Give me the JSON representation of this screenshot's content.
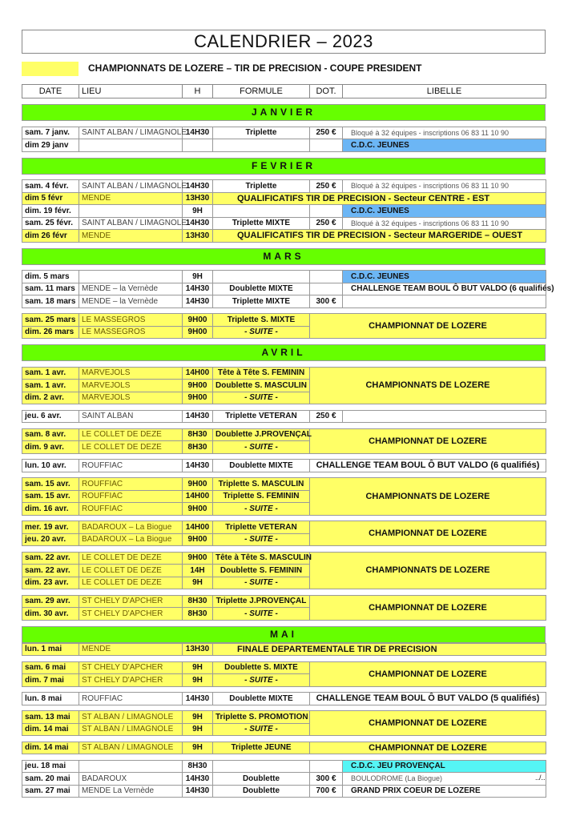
{
  "title": "CALENDRIER   –  2023",
  "legend": {
    "color": "#ffff66",
    "label": "CHAMPIONNATS DE LOZERE – TIR DE PRECISION - COUPE PRESIDENT"
  },
  "headers": [
    "DATE",
    "LIEU",
    "H",
    "FORMULE",
    "DOT.",
    "LIBELLE"
  ],
  "colors": {
    "month": "#66ff00",
    "highlight": "#ffff66",
    "cdc": "#6cb6f5",
    "cdc_provencal": "#55f5f5"
  },
  "months": [
    {
      "name": "JANVIER",
      "blocks": [
        {
          "rows": [
            {
              "date": "sam. 7 janv.",
              "lieu": "SAINT ALBAN / LIMAGNOLE",
              "h": "14H30",
              "formule": "Triplette",
              "dot": "250 €",
              "libelle": "Bloqué à 32 équipes - inscriptions 06 83 11 10 90",
              "style": "plain"
            },
            {
              "date": "dim 29 janv",
              "lieu": "",
              "h": "",
              "formule": "",
              "dot": "",
              "libelle": "C.D.C. JEUNES",
              "style": "blue"
            }
          ]
        }
      ]
    },
    {
      "name": "FEVRIER",
      "blocks": [
        {
          "rows": [
            {
              "date": "sam. 4 févr.",
              "lieu": "SAINT ALBAN / LIMAGNOLE",
              "h": "14H30",
              "formule": "Triplette",
              "dot": "250 €",
              "libelle": "Bloqué à 32 équipes - inscriptions 06 83 11 10 90",
              "style": "plain"
            },
            {
              "date": "dim 5 févr",
              "lieu": "MENDE",
              "h": "13H30",
              "formule": "QUALIFICATIFS TIR DE  PRECISION  -  Secteur  CENTRE - EST",
              "kind": "wide-formule",
              "yellow": true
            },
            {
              "date": "dim. 19 févr.",
              "lieu": "",
              "h": "9H",
              "formule": "",
              "dot": "",
              "libelle": "C.D.C. JEUNES",
              "style": "blue"
            },
            {
              "date": "sam. 25 févr.",
              "lieu": "SAINT ALBAN / LIMAGNOLE",
              "h": "14H30",
              "formule": "Triplette MIXTE",
              "dot": "250 €",
              "libelle": "Bloqué à 32 équipes - inscriptions 06 83 11 10 90",
              "style": "plain"
            },
            {
              "date": "dim 26 févr",
              "lieu": "MENDE",
              "h": "13H30",
              "formule": "QUALIFICATIFS TIR DE  PRECISION  -  Secteur  MARGERIDE – OUEST",
              "kind": "wide-formule",
              "yellow": true
            }
          ]
        }
      ]
    },
    {
      "name": "MARS",
      "blocks": [
        {
          "rows": [
            {
              "date": "dim. 5 mars",
              "lieu": "",
              "h": "9H",
              "formule": "",
              "dot": "",
              "libelle": "C.D.C. JEUNES",
              "style": "blue"
            },
            {
              "date": "sam. 11 mars",
              "lieu": "MENDE – la Vernède",
              "h": "14H30",
              "formule": "Doublette MIXTE",
              "dot": "",
              "libelle": "CHALLENGE TEAM BOUL Ô BUT VALDO (6 qualifiés)",
              "style": "bold"
            },
            {
              "date": "sam. 18 mars",
              "lieu": "MENDE – la Vernède",
              "h": "14H30",
              "formule": "Triplette MIXTE",
              "dot": "300 €",
              "libelle": "",
              "style": "bold"
            }
          ]
        },
        {
          "merged": true,
          "yellow": true,
          "libelle": "CHAMPIONNAT  DE  LOZERE",
          "rows": [
            {
              "date": "sam. 25 mars",
              "lieu": "LE MASSEGROS",
              "h": "9H00",
              "formule": "Triplette S. MIXTE"
            },
            {
              "date": "dim. 26 mars",
              "lieu": "LE MASSEGROS",
              "h": "9H00",
              "formule": "- SUITE -"
            }
          ]
        }
      ]
    },
    {
      "name": "AVRIL",
      "blocks": [
        {
          "merged": true,
          "yellow": true,
          "libelle": "CHAMPIONNATS  DE  LOZERE",
          "rows": [
            {
              "date": "sam. 1 avr.",
              "lieu": "MARVEJOLS",
              "h": "14H00",
              "formule": "Tête à Tête S. FEMININ"
            },
            {
              "date": "sam. 1 avr.",
              "lieu": "MARVEJOLS",
              "h": "9H00",
              "formule": "Doublette S. MASCULIN"
            },
            {
              "date": "dim. 2 avr.",
              "lieu": "MARVEJOLS",
              "h": "9H00",
              "formule": "- SUITE -"
            }
          ]
        },
        {
          "rows": [
            {
              "date": "jeu. 6 avr.",
              "lieu": "SAINT ALBAN",
              "h": "14H30",
              "formule": "Triplette VETERAN",
              "dot": "250 €",
              "libelle": "",
              "style": "bold"
            }
          ]
        },
        {
          "merged": true,
          "yellow": true,
          "libelle": "CHAMPIONNAT  DE  LOZERE",
          "rows": [
            {
              "date": "sam. 8 avr.",
              "lieu": "LE COLLET DE DEZE",
              "h": "8H30",
              "formule": "Doublette J.PROVENÇAL"
            },
            {
              "date": "dim. 9 avr.",
              "lieu": "LE COLLET DE DEZE",
              "h": "8H30",
              "formule": "- SUITE -"
            }
          ]
        },
        {
          "rows": [
            {
              "date": "lun. 10 avr.",
              "lieu": "ROUFFIAC",
              "h": "14H30",
              "formule": "Doublette MIXTE",
              "kind": "wide-libelle",
              "libelle": "CHALLENGE TEAM BOUL Ô BUT VALDO (6 qualifiés)"
            }
          ]
        },
        {
          "merged": true,
          "yellow": true,
          "libelle": "CHAMPIONNATS  DE  LOZERE",
          "rows": [
            {
              "date": "sam. 15 avr.",
              "lieu": "ROUFFIAC",
              "h": "9H00",
              "formule": "Triplette S. MASCULIN"
            },
            {
              "date": "sam. 15 avr.",
              "lieu": "ROUFFIAC",
              "h": "14H00",
              "formule": "Triplette S. FEMININ"
            },
            {
              "date": "dim. 16 avr.",
              "lieu": "ROUFFIAC",
              "h": "9H00",
              "formule": "- SUITE -"
            }
          ]
        },
        {
          "merged": true,
          "yellow": true,
          "libelle": "CHAMPIONNAT  DE  LOZERE",
          "rows": [
            {
              "date": "mer. 19 avr.",
              "lieu": "BADAROUX – La Biogue",
              "h": "14H00",
              "formule": "Triplette VETERAN"
            },
            {
              "date": "jeu. 20 avr.",
              "lieu": "BADAROUX – La Biogue",
              "h": "9H00",
              "formule": "- SUITE -"
            }
          ]
        },
        {
          "merged": true,
          "yellow": true,
          "libelle": "CHAMPIONNATS  DE  LOZERE",
          "rows": [
            {
              "date": "sam. 22 avr.",
              "lieu": "LE COLLET DE DEZE",
              "h": "9H00",
              "formule": "Tête à Tête S. MASCULIN"
            },
            {
              "date": "sam. 22 avr.",
              "lieu": "LE COLLET DE DEZE",
              "h": "14H",
              "formule": "Doublette S. FEMININ"
            },
            {
              "date": "dim. 23 avr.",
              "lieu": "LE COLLET DE DEZE",
              "h": "9H",
              "formule": "- SUITE -"
            }
          ]
        },
        {
          "merged": true,
          "yellow": true,
          "libelle": "CHAMPIONNAT  DE  LOZERE",
          "rows": [
            {
              "date": "sam. 29 avr.",
              "lieu": "ST CHELY D'APCHER",
              "h": "8H30",
              "formule": "Triplette J.PROVENÇAL"
            },
            {
              "date": "dim. 30 avr.",
              "lieu": "ST CHELY D'APCHER",
              "h": "8H30",
              "formule": "- SUITE -"
            }
          ]
        }
      ]
    },
    {
      "name": "MAI",
      "nogap": true,
      "blocks": [
        {
          "rows": [
            {
              "date": "lun. 1 mai",
              "lieu": "MENDE",
              "h": "13H30",
              "formule": "FINALE  DEPARTEMENTALE  TIR DE PRECISION",
              "kind": "wide-formule",
              "yellow": true
            }
          ]
        },
        {
          "merged": true,
          "yellow": true,
          "libelle": "CHAMPIONNAT  DE  LOZERE",
          "rows": [
            {
              "date": "sam. 6 mai",
              "lieu": "ST CHELY D'APCHER",
              "h": "9H",
              "formule": "Doublette S. MIXTE"
            },
            {
              "date": "dim. 7 mai",
              "lieu": "ST CHELY D'APCHER",
              "h": "9H",
              "formule": "- SUITE -"
            }
          ]
        },
        {
          "rows": [
            {
              "date": "lun. 8 mai",
              "lieu": "ROUFFIAC",
              "h": "14H30",
              "formule": "Doublette MIXTE",
              "kind": "wide-libelle",
              "libelle": "CHALLENGE TEAM BOUL Ô BUT VALDO (5 qualifiés)"
            }
          ]
        },
        {
          "merged": true,
          "yellow": true,
          "libelle": "CHAMPIONNAT  DE  LOZERE",
          "rows": [
            {
              "date": "sam. 13 mai",
              "lieu": "ST ALBAN / LIMAGNOLE",
              "h": "9H",
              "formule": "Triplette S. PROMOTION"
            },
            {
              "date": "dim. 14 mai",
              "lieu": "ST ALBAN / LIMAGNOLE",
              "h": "9H",
              "formule": "- SUITE -"
            }
          ]
        },
        {
          "rows": [
            {
              "date": "dim. 14 mai",
              "lieu": "ST ALBAN / LIMAGNOLE",
              "h": "9H",
              "formule": "Triplette  JEUNE",
              "kind": "wide-libelle",
              "libelle": "CHAMPIONNAT  DE  LOZERE",
              "yellow": true
            }
          ]
        },
        {
          "rows": [
            {
              "date": "jeu. 18 mai",
              "lieu": "",
              "h": "8H30",
              "formule": "",
              "dot": "",
              "libelle": "C.D.C.  JEU PROVENÇAL",
              "style": "cyan"
            },
            {
              "date": "sam. 20 mai",
              "lieu": "BADAROUX",
              "h": "14H30",
              "formule": "Doublette",
              "dot": "300 €",
              "libelle": "BOULODROME (La Biogue)",
              "style": "plain"
            },
            {
              "date": "sam. 27 mai",
              "lieu": "MENDE La Vernède",
              "h": "14H30",
              "formule": "Doublette",
              "dot": "700 €",
              "libelle": "GRAND PRIX COEUR DE LOZERE",
              "style": "bold"
            }
          ]
        }
      ]
    }
  ],
  "footer": "../.."
}
